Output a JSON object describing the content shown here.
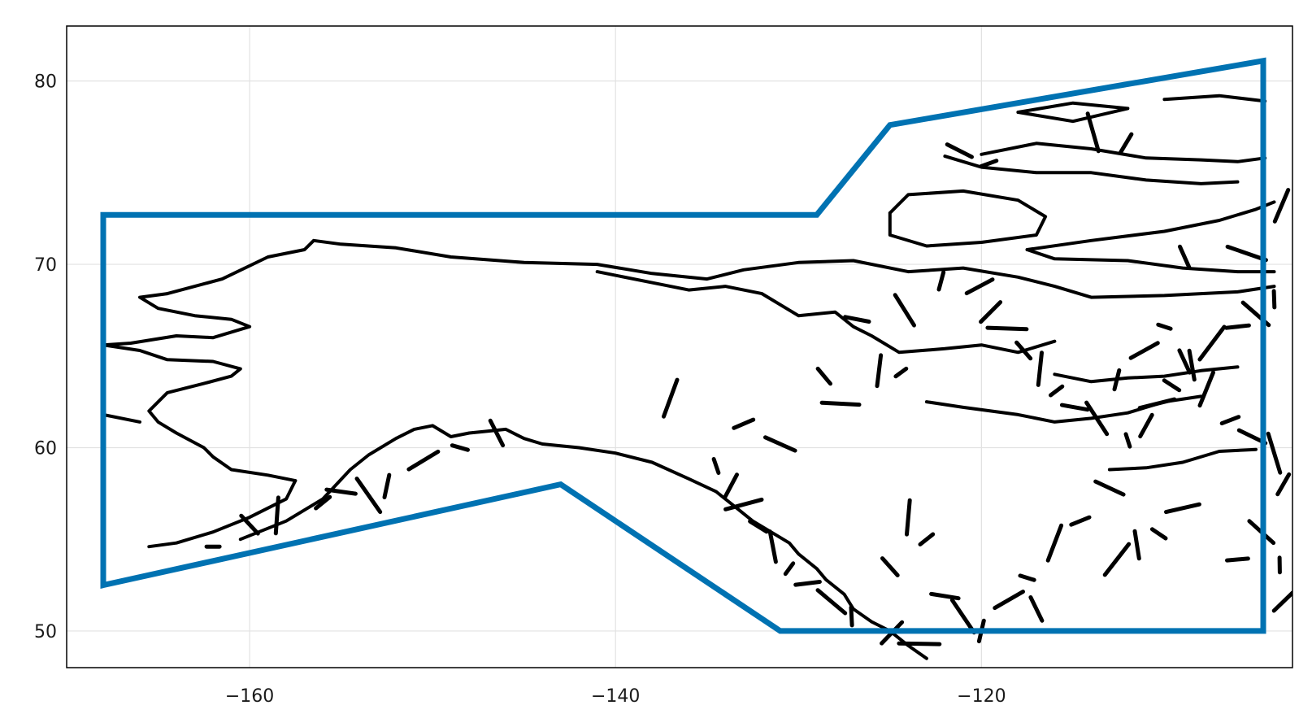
{
  "chart_data": {
    "type": "map",
    "xlim": [
      -170,
      -103
    ],
    "ylim": [
      48,
      83
    ],
    "x_ticks": [
      {
        "value": -160,
        "label": "−160"
      },
      {
        "value": -140,
        "label": "−140"
      },
      {
        "value": -120,
        "label": "−120"
      }
    ],
    "y_ticks": [
      {
        "value": 50,
        "label": "50"
      },
      {
        "value": 60,
        "label": "60"
      },
      {
        "value": 70,
        "label": "70"
      },
      {
        "value": 80,
        "label": "80"
      }
    ],
    "grid": true,
    "coastline_color": "#000000",
    "polygon": {
      "color": "#0072b2",
      "vertices": [
        [
          -168,
          72.7
        ],
        [
          -129,
          72.7
        ],
        [
          -125,
          77.6
        ],
        [
          -104.6,
          81.1
        ],
        [
          -104.6,
          50.0
        ],
        [
          -131,
          50.0
        ],
        [
          -143,
          58.0
        ],
        [
          -168,
          52.5
        ],
        [
          -168,
          72.7
        ]
      ]
    }
  }
}
